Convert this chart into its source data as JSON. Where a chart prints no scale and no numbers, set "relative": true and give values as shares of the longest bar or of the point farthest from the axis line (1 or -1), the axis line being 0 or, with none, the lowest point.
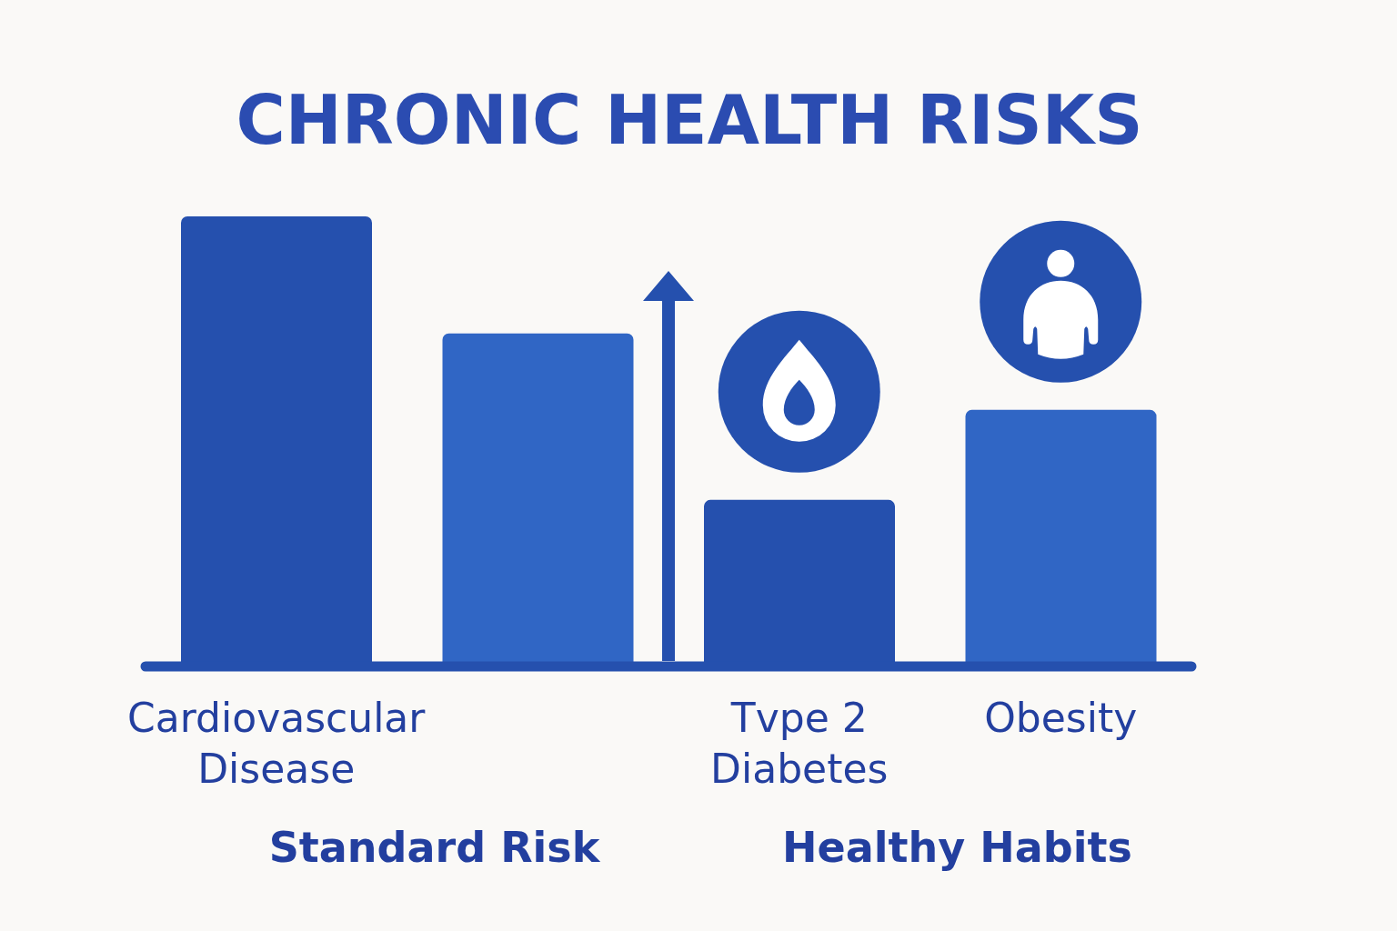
{
  "chart_data": {
    "type": "bar",
    "title": "CHRONIC HEALTH RISKS",
    "categories": [
      "Cardiovascular Disease",
      null,
      "Tvpe 2 Diabetes",
      "Obesity"
    ],
    "values": [
      1,
      0.74,
      0.37,
      0.57
    ],
    "colors": [
      "#2550ae",
      "#3066c5",
      "#2550ae",
      "#3066c5"
    ],
    "relative": true,
    "annotations": [
      "Standard Risk",
      "Healthy Habits"
    ]
  }
}
